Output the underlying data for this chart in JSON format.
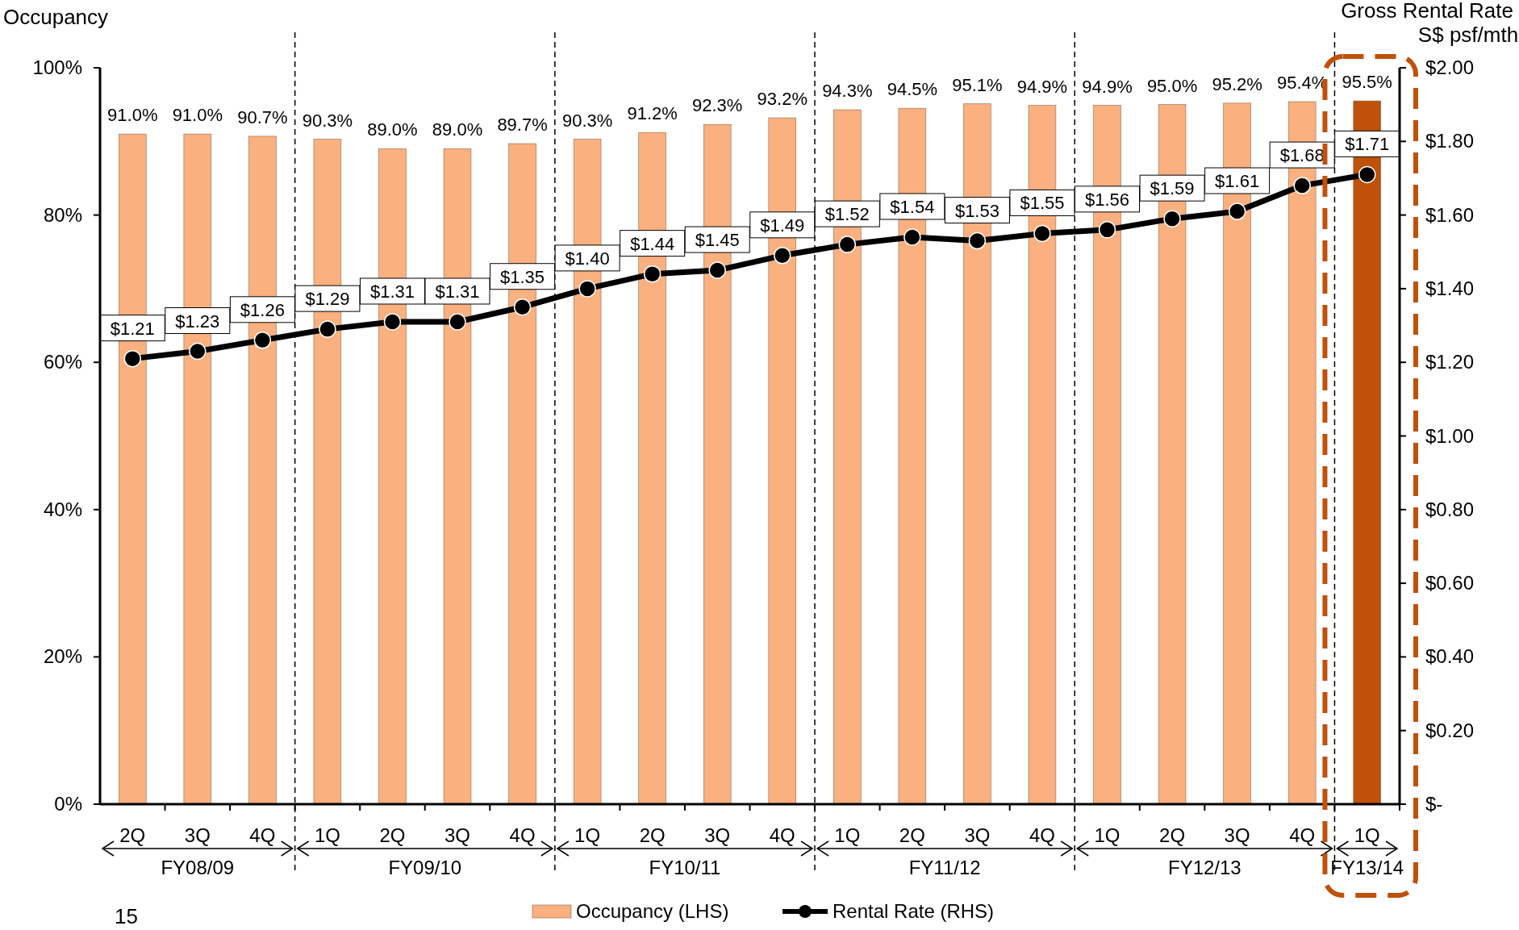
{
  "chart_data": {
    "type": "bar",
    "ylabel": "Occupancy",
    "y2label": "Gross Rental Rate S$ psf/mth",
    "categories": [
      "2Q",
      "3Q",
      "4Q",
      "1Q",
      "2Q",
      "3Q",
      "4Q",
      "1Q",
      "2Q",
      "3Q",
      "4Q",
      "1Q",
      "2Q",
      "3Q",
      "4Q",
      "1Q",
      "2Q",
      "3Q",
      "4Q",
      "1Q"
    ],
    "ylim": [
      0,
      100
    ],
    "yticks": [
      {
        "value": 0,
        "label": "0%"
      },
      {
        "value": 20,
        "label": "20%"
      },
      {
        "value": 40,
        "label": "40%"
      },
      {
        "value": 60,
        "label": "60%"
      },
      {
        "value": 80,
        "label": "80%"
      },
      {
        "value": 100,
        "label": "100%"
      }
    ],
    "y2lim": [
      0,
      2
    ],
    "y2ticks": [
      {
        "value": 0,
        "label": "$-"
      },
      {
        "value": 0.2,
        "label": "$0.20"
      },
      {
        "value": 0.4,
        "label": "$0.40"
      },
      {
        "value": 0.6,
        "label": "$0.60"
      },
      {
        "value": 0.8,
        "label": "$0.80"
      },
      {
        "value": 1,
        "label": "$1.00"
      },
      {
        "value": 1.2,
        "label": "$1.20"
      },
      {
        "value": 1.4,
        "label": "$1.40"
      },
      {
        "value": 1.6,
        "label": "$1.60"
      },
      {
        "value": 1.8,
        "label": "$1.80"
      },
      {
        "value": 2,
        "label": "$2.00"
      }
    ],
    "series": [
      {
        "name": "Occupancy (LHS)",
        "color": "#fbb07f",
        "colors": [
          "#fbb07f",
          "#fbb07f",
          "#fbb07f",
          "#fbb07f",
          "#fbb07f",
          "#fbb07f",
          "#fbb07f",
          "#fbb07f",
          "#fbb07f",
          "#fbb07f",
          "#fbb07f",
          "#fbb07f",
          "#fbb07f",
          "#fbb07f",
          "#fbb07f",
          "#fbb07f",
          "#fbb07f",
          "#fbb07f",
          "#fbb07f",
          "#c0500a"
        ],
        "values": [
          91.0,
          91.0,
          90.7,
          90.3,
          89.0,
          89.0,
          89.7,
          90.3,
          91.2,
          92.3,
          93.2,
          94.3,
          94.5,
          95.1,
          94.9,
          94.9,
          95.0,
          95.2,
          95.4,
          95.5
        ],
        "value_labels": [
          "91.0%",
          "91.0%",
          "90.7%",
          "90.3%",
          "89.0%",
          "89.0%",
          "89.7%",
          "90.3%",
          "91.2%",
          "92.3%",
          "93.2%",
          "94.3%",
          "94.5%",
          "95.1%",
          "94.9%",
          "94.9%",
          "95.0%",
          "95.2%",
          "95.4%",
          "95.5%"
        ]
      },
      {
        "name": "Rental Rate (RHS)",
        "type": "line",
        "axis": "y2",
        "color": "#000000",
        "marker": "circle",
        "values": [
          1.21,
          1.23,
          1.26,
          1.29,
          1.31,
          1.31,
          1.35,
          1.4,
          1.44,
          1.45,
          1.49,
          1.52,
          1.54,
          1.53,
          1.55,
          1.56,
          1.59,
          1.61,
          1.68,
          1.71
        ],
        "value_labels": [
          "$1.21",
          "$1.23",
          "$1.26",
          "$1.29",
          "$1.31",
          "$1.31",
          "$1.35",
          "$1.40",
          "$1.44",
          "$1.45",
          "$1.49",
          "$1.52",
          "$1.54",
          "$1.53",
          "$1.55",
          "$1.56",
          "$1.59",
          "$1.61",
          "$1.68",
          "$1.71"
        ]
      }
    ],
    "annotations": [
      "FY08/09",
      "FY09/10",
      "FY10/11",
      "FY11/12",
      "FY12/13",
      "FY13/14",
      "15"
    ],
    "legend": "bottom"
  }
}
